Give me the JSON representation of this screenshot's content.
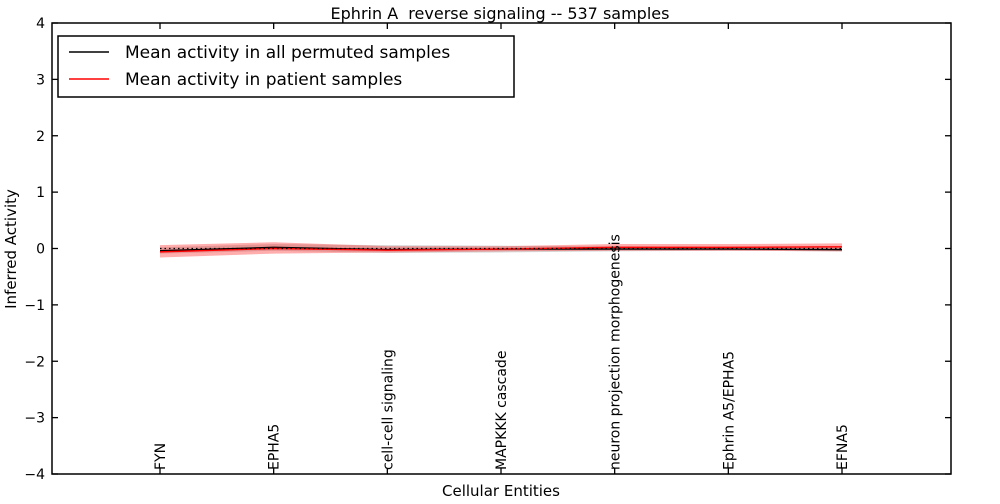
{
  "figure": {
    "background": "#ffffff",
    "axis_color": "#000000"
  },
  "chart_data": {
    "type": "line",
    "title": "Ephrin A  reverse signaling -- 537 samples",
    "xlabel": "Cellular Entities",
    "ylabel": "Inferred Activity",
    "ylim": [
      -4,
      4
    ],
    "yticks": [
      4,
      3,
      2,
      1,
      0,
      -1,
      -2,
      -3,
      -4
    ],
    "ytick_labels": [
      "4",
      "3",
      "2",
      "1",
      "0",
      "−1",
      "−2",
      "−3",
      "−4"
    ],
    "grid": false,
    "legend_position": "upper left",
    "categories": [
      "FYN",
      "EPHA5",
      "cell-cell signaling",
      "MAPKKK cascade",
      "neuron projection morphogenesis",
      "Ephrin A5/EPHA5",
      "EFNA5"
    ],
    "series": [
      {
        "name": "Mean activity in all permuted samples",
        "color": "#000000",
        "values": [
          -0.04,
          0.02,
          -0.02,
          -0.01,
          -0.01,
          -0.01,
          -0.02
        ],
        "band_upper": [
          0.02,
          0.08,
          0.06,
          0.05,
          0.04,
          0.03,
          0.02
        ],
        "band_lower": [
          -0.09,
          -0.04,
          -0.08,
          -0.07,
          -0.05,
          -0.04,
          -0.05
        ],
        "band_color": "rgba(0,0,0,0.16)"
      },
      {
        "name": "Mean activity in patient samples",
        "color": "#ff0000",
        "values": [
          -0.06,
          0.0,
          -0.03,
          -0.01,
          0.02,
          0.02,
          0.03
        ],
        "band_upper": [
          0.06,
          0.11,
          0.04,
          0.04,
          0.08,
          0.08,
          0.09
        ],
        "band_lower": [
          -0.16,
          -0.09,
          -0.07,
          -0.05,
          -0.04,
          -0.04,
          -0.05
        ],
        "band_color": "rgba(255,40,40,0.38)"
      }
    ],
    "reference_line": {
      "y": 0,
      "style": "dotted",
      "color": "#000000"
    }
  }
}
